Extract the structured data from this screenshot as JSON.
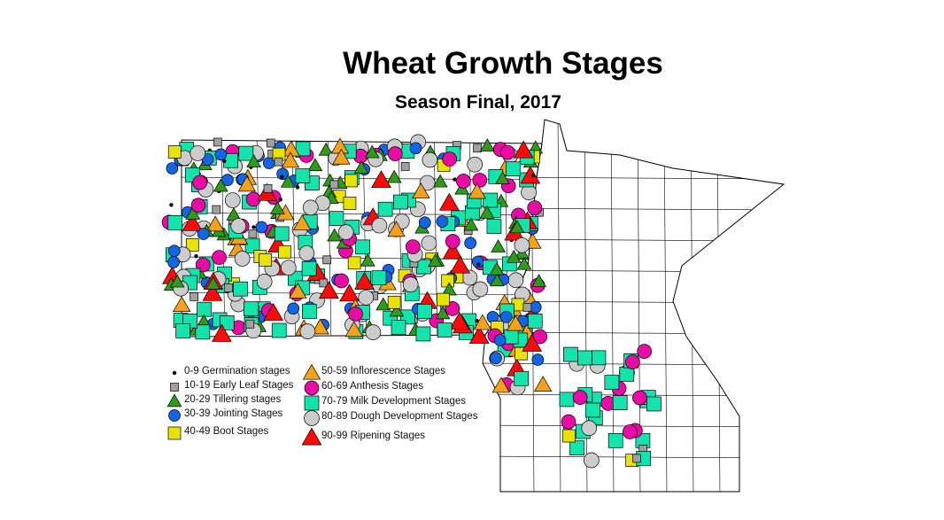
{
  "title": "Wheat Growth Stages",
  "subtitle": "Season Final, 2017",
  "legend": [
    {
      "label": "0-9 Germination stages",
      "shape": "dot",
      "color": "#000000"
    },
    {
      "label": "10-19 Early Leaf Stages",
      "shape": "square",
      "color": "#a0a0a0"
    },
    {
      "label": "20-29 Tillering stages",
      "shape": "triangle",
      "color": "#2f9a1c"
    },
    {
      "label": "30-39 Jointing Stages",
      "shape": "circle",
      "color": "#1464e6"
    },
    {
      "label": "40-49 Boot Stages",
      "shape": "square",
      "color": "#e8e400"
    },
    {
      "label": "50-59 Inflorescence Stages",
      "shape": "triangle",
      "color": "#f4a21c"
    },
    {
      "label": "60-69 Anthesis Stages",
      "shape": "circle",
      "color": "#e80ca4"
    },
    {
      "label": "70-79 Milk Development Stages",
      "shape": "square",
      "color": "#14e4ac"
    },
    {
      "label": "80-89 Dough Development Stages",
      "shape": "circle",
      "color": "#cccccc"
    },
    {
      "label": "90-99 Ripening Stages",
      "shape": "triangle",
      "color": "#ff0a0a"
    }
  ]
}
